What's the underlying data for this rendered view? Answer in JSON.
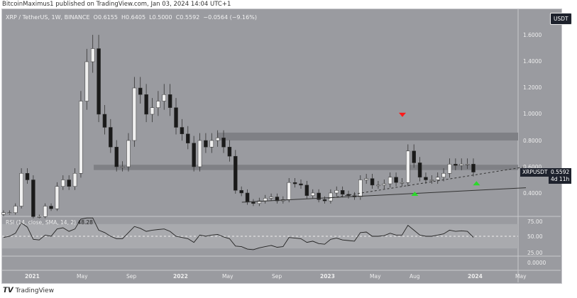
{
  "header": {
    "published": "BitcoinMaximus1 published on TradingView.com, Jan 03, 2024 14:04 UTC+1"
  },
  "legend": {
    "symbol": "XRP / TetherUS, 1W, BINANCE",
    "o": "O0.6155",
    "h": "H0.6405",
    "l": "L0.5000",
    "c": "C0.5592",
    "change": "−0.0564 (−9.16%)"
  },
  "currency_button": "USDT",
  "price_tag": {
    "symbol": "XRPUSDT",
    "price": "0.5592",
    "countdown": "4d 11h"
  },
  "price_axis": [
    "1.6000",
    "1.4000",
    "1.2000",
    "1.0000",
    "0.8000",
    "0.6000",
    "0.4000"
  ],
  "rsi": {
    "label": "RSI (14, close, SMA, 14, 2)",
    "value": "48.28",
    "axis": [
      "75.00",
      "50.00",
      "25.00"
    ],
    "zero_axis": "0.0000"
  },
  "time_axis": [
    "2021",
    "May",
    "Sep",
    "2022",
    "May",
    "Sep",
    "2023",
    "May",
    "Aug",
    "2024",
    "May"
  ],
  "footer": {
    "brand": "TradingView"
  },
  "colors": {
    "background": "#9a9ba0",
    "bull": "#f0f0f0",
    "bear": "#1a1a1a",
    "down_marker": "#ff1a1a",
    "up_marker": "#2bd92b",
    "zone": "#7f8085"
  },
  "chart_data": {
    "type": "candlestick",
    "interval": "biweekly approximation of 1W",
    "x_start": "2020-10",
    "x_end": "2024-01",
    "closes": [
      0.25,
      0.25,
      0.3,
      0.55,
      0.5,
      0.22,
      0.22,
      0.3,
      0.28,
      0.45,
      0.5,
      0.45,
      0.55,
      1.1,
      1.4,
      1.5,
      1.0,
      0.9,
      0.75,
      0.6,
      0.6,
      0.8,
      1.2,
      1.15,
      1.0,
      1.05,
      1.1,
      1.15,
      1.05,
      0.9,
      0.85,
      0.78,
      0.6,
      0.8,
      0.75,
      0.8,
      0.82,
      0.75,
      0.68,
      0.42,
      0.4,
      0.33,
      0.32,
      0.34,
      0.36,
      0.37,
      0.34,
      0.35,
      0.48,
      0.47,
      0.46,
      0.38,
      0.4,
      0.35,
      0.34,
      0.4,
      0.42,
      0.39,
      0.38,
      0.37,
      0.5,
      0.51,
      0.46,
      0.46,
      0.47,
      0.52,
      0.48,
      0.48,
      0.72,
      0.63,
      0.52,
      0.5,
      0.5,
      0.52,
      0.55,
      0.62,
      0.61,
      0.62,
      0.62,
      0.5592
    ],
    "rsi": [
      48,
      50,
      55,
      72,
      65,
      45,
      44,
      52,
      50,
      62,
      64,
      58,
      62,
      78,
      80,
      80,
      60,
      56,
      50,
      46,
      46,
      56,
      66,
      63,
      58,
      60,
      61,
      62,
      58,
      50,
      48,
      46,
      40,
      52,
      50,
      52,
      53,
      49,
      46,
      34,
      33,
      29,
      28,
      31,
      33,
      35,
      32,
      33,
      48,
      47,
      46,
      40,
      42,
      38,
      37,
      45,
      47,
      44,
      43,
      42,
      56,
      57,
      50,
      50,
      51,
      55,
      52,
      52,
      68,
      60,
      52,
      50,
      50,
      52,
      54,
      60,
      58,
      59,
      58,
      48.28
    ],
    "price_range": [
      0.2,
      1.8
    ],
    "zones": [
      {
        "from": 0.8,
        "to": 0.86
      },
      {
        "from": 0.575,
        "to": 0.615
      }
    ],
    "trendlines": [
      {
        "style": "solid",
        "start": [
          "2022-06",
          0.33
        ],
        "end": [
          "2024-05",
          0.44
        ]
      },
      {
        "style": "dashed",
        "start": [
          "2023-01",
          0.36
        ],
        "end": [
          "2024-05",
          0.6
        ]
      }
    ],
    "markers": [
      {
        "type": "down",
        "date": "2023-07",
        "price": 0.99
      },
      {
        "type": "up",
        "date": "2023-08",
        "price": 0.4
      },
      {
        "type": "up",
        "date": "2024-01",
        "price": 0.48
      }
    ]
  }
}
